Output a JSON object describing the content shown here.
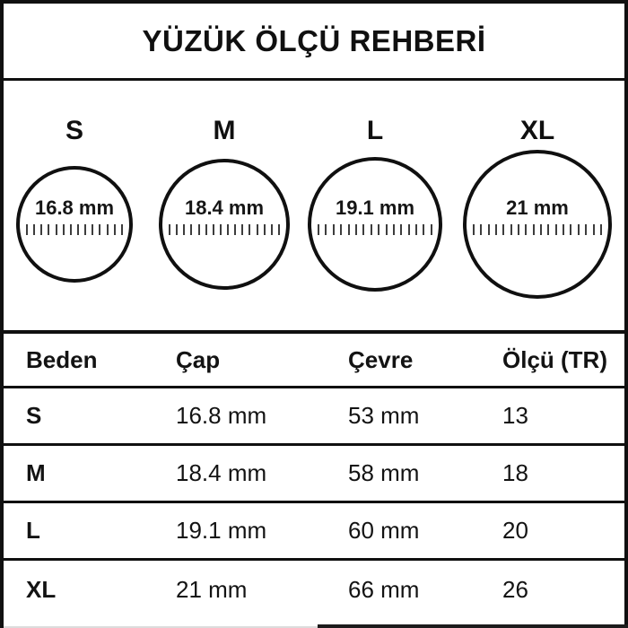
{
  "title": "YÜZÜK ÖLÇÜ REHBERİ",
  "colors": {
    "ink": "#101010",
    "background": "#ffffff",
    "tick": "#3d3d3d"
  },
  "rings": [
    {
      "label": "S",
      "diameter": "16.8 mm"
    },
    {
      "label": "M",
      "diameter": "18.4 mm"
    },
    {
      "label": "L",
      "diameter": "19.1 mm"
    },
    {
      "label": "XL",
      "diameter": "21 mm"
    }
  ],
  "table": {
    "headers": [
      "Beden",
      "Çap",
      "Çevre",
      "Ölçü (TR)"
    ],
    "rows": [
      {
        "size": "S",
        "cap": "16.8 mm",
        "cevre": "53 mm",
        "olcu_tr": "13"
      },
      {
        "size": "M",
        "cap": "18.4 mm",
        "cevre": "58 mm",
        "olcu_tr": "18"
      },
      {
        "size": "L",
        "cap": "19.1 mm",
        "cevre": "60 mm",
        "olcu_tr": "20"
      },
      {
        "size": "XL",
        "cap": "21 mm",
        "cevre": "66 mm",
        "olcu_tr": "26"
      }
    ]
  }
}
